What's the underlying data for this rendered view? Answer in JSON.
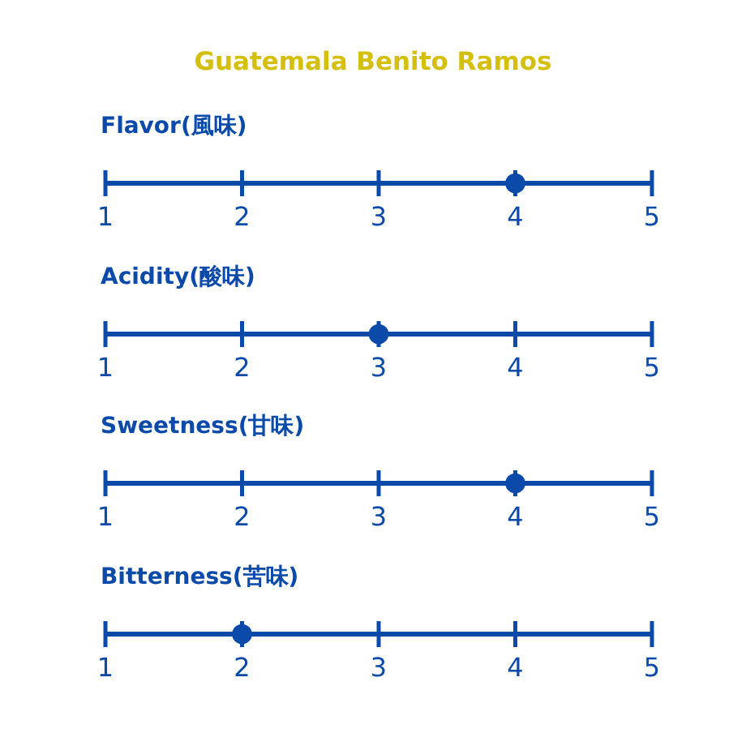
{
  "chart_data": [
    {
      "type": "other",
      "title": "Guatemala Benito Ramos"
    },
    {
      "type": "scatter",
      "orientation": "horizontal",
      "categories": [
        "Flavor(風味)"
      ],
      "values": [
        4
      ],
      "xlim": [
        1,
        5
      ],
      "xticks": [
        1,
        2,
        3,
        4,
        5
      ],
      "marker": "circle",
      "color": "#0b4aa8"
    },
    {
      "type": "scatter",
      "orientation": "horizontal",
      "categories": [
        "Acidity(酸味)"
      ],
      "values": [
        3
      ],
      "xlim": [
        1,
        5
      ],
      "xticks": [
        1,
        2,
        3,
        4,
        5
      ],
      "marker": "circle",
      "color": "#0b4aa8"
    },
    {
      "type": "scatter",
      "orientation": "horizontal",
      "categories": [
        "Sweetness(甘味)"
      ],
      "values": [
        4
      ],
      "xlim": [
        1,
        5
      ],
      "xticks": [
        1,
        2,
        3,
        4,
        5
      ],
      "marker": "circle",
      "color": "#0b4aa8"
    },
    {
      "type": "scatter",
      "orientation": "horizontal",
      "categories": [
        "Bitterness(苦味)"
      ],
      "values": [
        2
      ],
      "xlim": [
        1,
        5
      ],
      "xticks": [
        1,
        2,
        3,
        4,
        5
      ],
      "marker": "circle",
      "color": "#0b4aa8"
    }
  ]
}
